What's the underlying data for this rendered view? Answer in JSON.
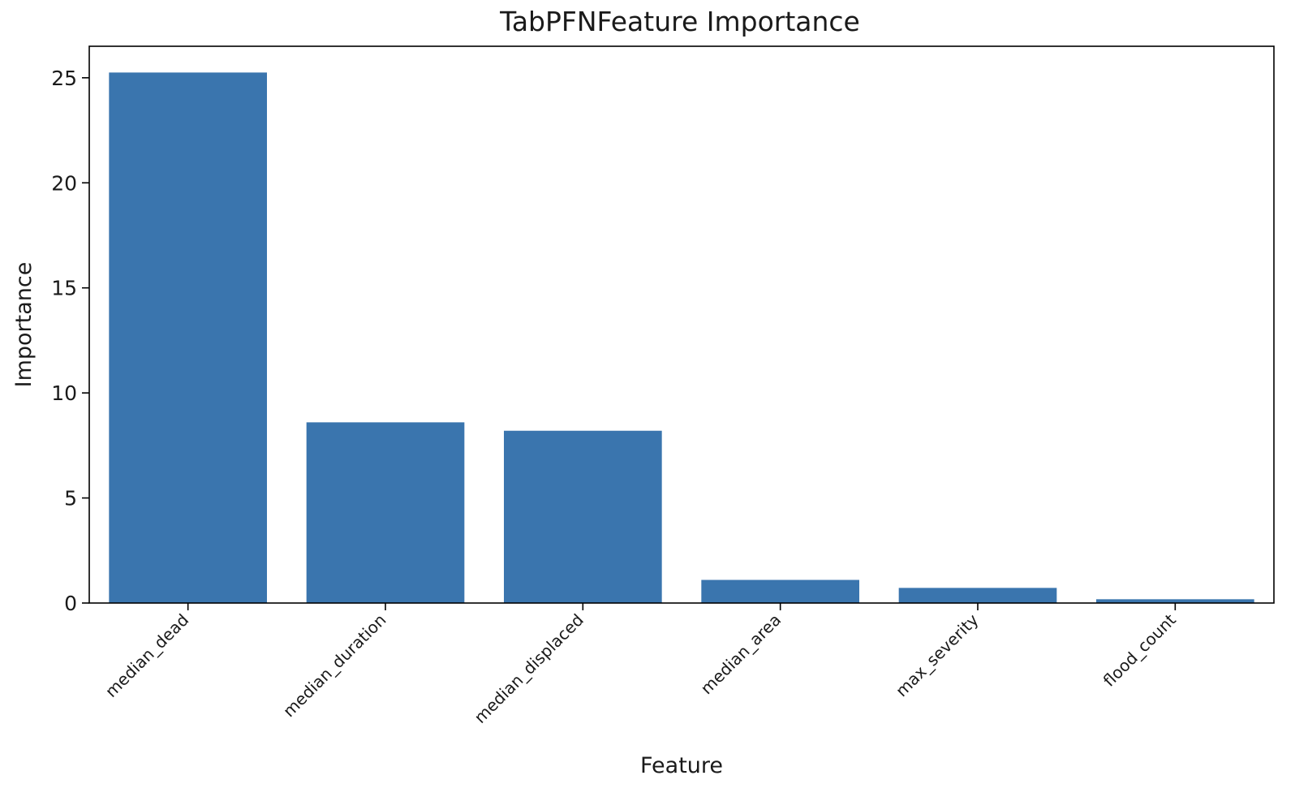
{
  "chart_data": {
    "type": "bar",
    "title": "TabPFNFeature Importance",
    "xlabel": "Feature",
    "ylabel": "Importance",
    "categories": [
      "median_dead",
      "median_duration",
      "median_displaced",
      "median_area",
      "max_severity",
      "flood_count"
    ],
    "values": [
      25.25,
      8.6,
      8.2,
      1.1,
      0.72,
      0.18
    ],
    "ylim": [
      0,
      26.5
    ],
    "yticks": [
      0,
      5,
      10,
      15,
      20,
      25
    ],
    "grid": false,
    "legend": "none",
    "bar_color": "#3a75ae",
    "axis_color": "#000000"
  }
}
